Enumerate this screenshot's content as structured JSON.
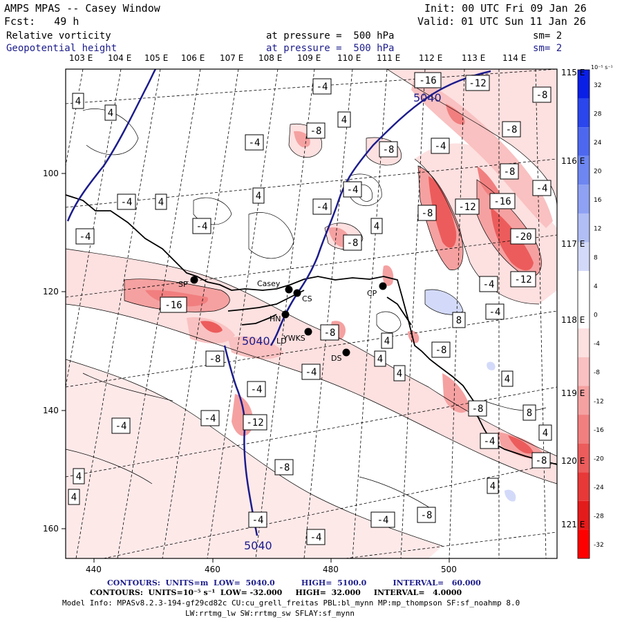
{
  "header": {
    "title": "AMPS MPAS -- Casey Window",
    "init": "Init: 00 UTC Fri 09 Jan 26",
    "fcst": "Fcst:   49 h",
    "valid": "Valid: 01 UTC Sun 11 Jan 26",
    "field1": {
      "name": "Relative vorticity",
      "level": "at pressure =  500 hPa",
      "sm": "sm= 2"
    },
    "field2": {
      "name": "Geopotential height",
      "level": "at pressure =  500 hPa",
      "sm": "sm= 2"
    }
  },
  "axes": {
    "lon_top": [
      "103 E",
      "104 E",
      "105 E",
      "106 E",
      "107 E",
      "108 E",
      "109 E",
      "110 E",
      "111 E",
      "112 E",
      "113 E",
      "114 E"
    ],
    "lat_right": [
      "115 E",
      "116 E",
      "117 E",
      "118 E",
      "119 E",
      "120 E",
      "121 E"
    ],
    "y_left": [
      "100",
      "120",
      "140",
      "160"
    ],
    "x_bottom": [
      "440",
      "460",
      "480",
      "500"
    ]
  },
  "colorbar": {
    "units": "10⁻⁵ s⁻¹",
    "levels": [
      "32",
      "28",
      "24",
      "20",
      "16",
      "12",
      "8",
      "4",
      "0",
      "-4",
      "-8",
      "-12",
      "-16",
      "-20",
      "-24",
      "-28",
      "-32"
    ],
    "colors": [
      "#0a1fe6",
      "#2a46ec",
      "#4d68ef",
      "#6d86f1",
      "#8ea1f3",
      "#b1bef6",
      "#d3daf9",
      "#ffffff",
      "#ffffff",
      "#fde0e0",
      "#f9c1c1",
      "#f5a1a1",
      "#f17f7f",
      "#ec5c5c",
      "#e83838",
      "#e41b1b",
      "#ff0000"
    ]
  },
  "stations": [
    {
      "name": "SP"
    },
    {
      "name": "Casey"
    },
    {
      "name": "CS"
    },
    {
      "name": "HN"
    },
    {
      "name": "LD"
    },
    {
      "name": "YWKS"
    },
    {
      "name": "DS"
    },
    {
      "name": "CP"
    }
  ],
  "height_contour_label": "5040",
  "vorticity_labels": [
    "-4",
    "-8",
    "-12",
    "-16",
    "-20",
    "4",
    "8"
  ],
  "footer": {
    "line1": "CONTOURS:  UNITS=m  LOW=  5040.0          HIGH=  5100.0          INTERVAL=   60.000",
    "line2": "CONTOURS:  UNITS=10⁻⁵ s⁻¹  LOW= -32.000     HIGH=  32.000     INTERVAL=   4.0000",
    "line3": "Model Info: MPASv8.2.3-194-gf29cd82c CU:cu_grell_freitas PBL:bl_mynn MP:mp_thompson SF:sf_noahmp 8.0",
    "line4": "LW:rrtmg_lw SW:rrtmg_sw SFLAY:sf_mynn"
  }
}
